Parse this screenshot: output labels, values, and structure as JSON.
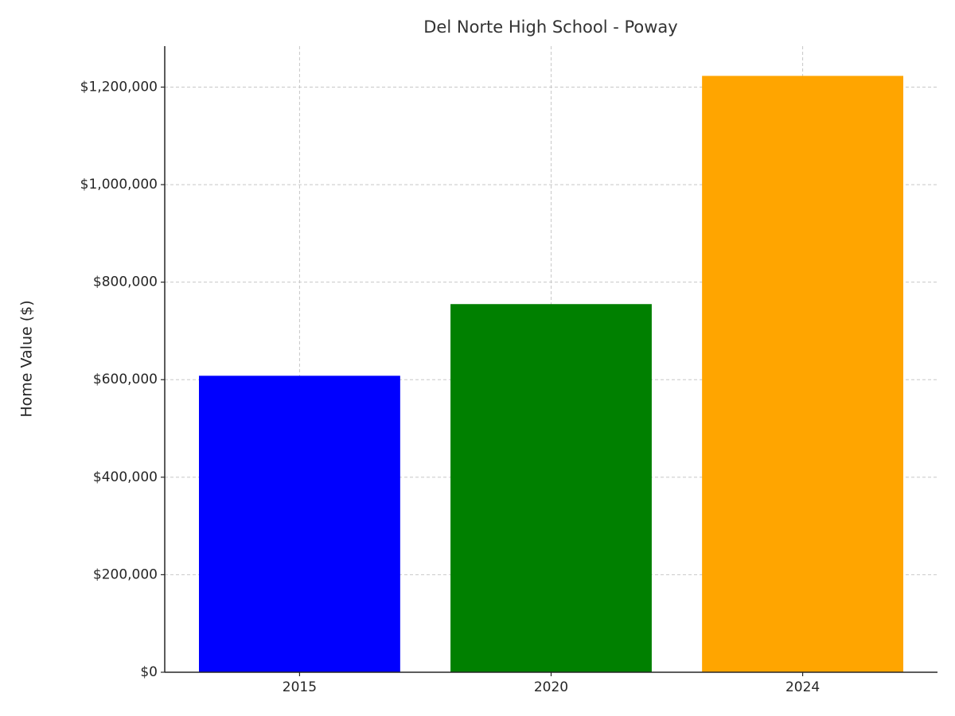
{
  "chart_data": {
    "type": "bar",
    "title": "Del Norte High School - Poway",
    "y_label": "Home Value ($)",
    "categories": [
      "2015",
      "2020",
      "2024"
    ],
    "values": [
      608000,
      755000,
      1223000
    ],
    "colors": [
      "#0000ff",
      "#008000",
      "#ffa500"
    ],
    "ylim": [
      0,
      1284000
    ],
    "yticks": [
      {
        "value": 0,
        "label": "$0"
      },
      {
        "value": 200000,
        "label": "$200,000"
      },
      {
        "value": 400000,
        "label": "$400,000"
      },
      {
        "value": 600000,
        "label": "$600,000"
      },
      {
        "value": 800000,
        "label": "$800,000"
      },
      {
        "value": 1000000,
        "label": "$1,000,000"
      },
      {
        "value": 1200000,
        "label": "$1,200,000"
      }
    ],
    "grid": true
  }
}
